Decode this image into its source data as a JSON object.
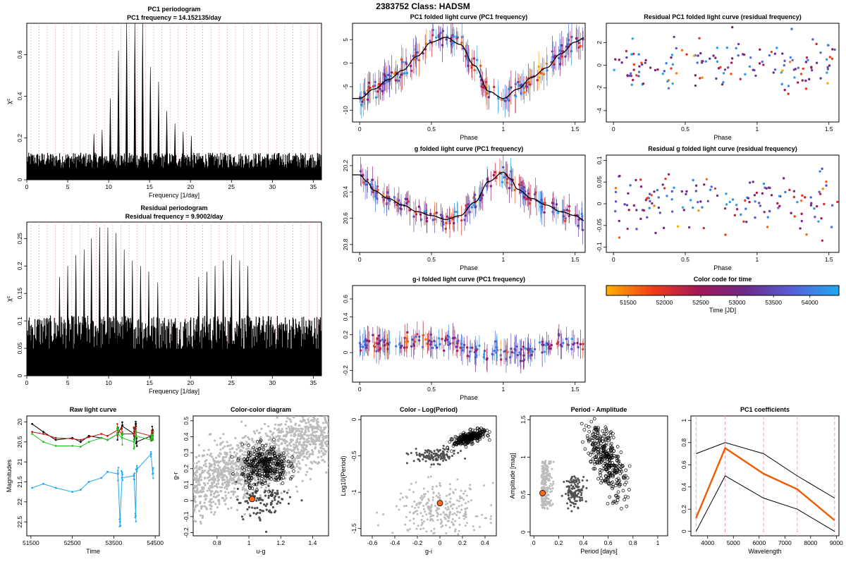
{
  "page": {
    "title": "2383752    Class: HADSM"
  },
  "colors": {
    "time_scale": [
      "#ffb000",
      "#f03c18",
      "#a2165a",
      "#6d2a8a",
      "#5660d8",
      "#1faaf0"
    ],
    "pc1_line": "#f05a00",
    "grey_points": "#bcbcbc",
    "dark_points": "#505050",
    "highlight_point": "#ff6a1a",
    "raw_black": "#000000",
    "raw_red": "#d01010",
    "raw_green": "#20c020",
    "raw_blue": "#20a8f0",
    "frequency_marker_line": "#f0a0b4",
    "wavelength_marker_line": "#f0a0b4"
  },
  "chart_data": [
    {
      "id": "pc1-periodogram",
      "type": "line",
      "title": "PC1 periodogram",
      "subtitle": "PC1 frequency = 14.152135/day",
      "xlabel": "Frequency [1/day]",
      "ylabel": "χ²",
      "xlim": [
        0,
        36
      ],
      "ylim": [
        0,
        0.75
      ],
      "xticks": [
        0,
        5,
        10,
        15,
        20,
        25,
        30,
        35
      ],
      "yticks": [
        0.0,
        0.2,
        0.4,
        0.6
      ],
      "peaks": [
        {
          "x": 8.2,
          "y": 0.22
        },
        {
          "x": 9.2,
          "y": 0.24
        },
        {
          "x": 10.2,
          "y": 0.39
        },
        {
          "x": 11.2,
          "y": 0.62
        },
        {
          "x": 12.2,
          "y": 0.75
        },
        {
          "x": 13.2,
          "y": 0.75
        },
        {
          "x": 14.15,
          "y": 0.75
        },
        {
          "x": 15.1,
          "y": 0.54
        },
        {
          "x": 16.1,
          "y": 0.47
        },
        {
          "x": 17.1,
          "y": 0.33
        },
        {
          "x": 18.1,
          "y": 0.27
        },
        {
          "x": 19.1,
          "y": 0.23
        },
        {
          "x": 20.1,
          "y": 0.21
        }
      ],
      "noise_level": 0.13,
      "frequency_markers": true
    },
    {
      "id": "residual-periodogram",
      "type": "line",
      "title": "Residual periodogram",
      "subtitle": "Residual frequency = 9.9002/day",
      "xlabel": "Frequency [1/day]",
      "ylabel": "χ²",
      "xlim": [
        0,
        36
      ],
      "ylim": [
        0,
        0.28
      ],
      "xticks": [
        0,
        5,
        10,
        15,
        20,
        25,
        30,
        35
      ],
      "yticks": [
        0.0,
        0.05,
        0.1,
        0.15,
        0.2,
        0.25
      ],
      "peaks": [
        {
          "x": 4.0,
          "y": 0.18
        },
        {
          "x": 5.0,
          "y": 0.2
        },
        {
          "x": 6.0,
          "y": 0.22
        },
        {
          "x": 7.0,
          "y": 0.23
        },
        {
          "x": 7.9,
          "y": 0.25
        },
        {
          "x": 8.9,
          "y": 0.27
        },
        {
          "x": 9.9,
          "y": 0.27
        },
        {
          "x": 10.9,
          "y": 0.26
        },
        {
          "x": 11.9,
          "y": 0.23
        },
        {
          "x": 12.9,
          "y": 0.21
        },
        {
          "x": 13.9,
          "y": 0.2
        },
        {
          "x": 14.9,
          "y": 0.19
        },
        {
          "x": 16.0,
          "y": 0.17
        },
        {
          "x": 21.0,
          "y": 0.18
        },
        {
          "x": 22.0,
          "y": 0.19
        },
        {
          "x": 23.0,
          "y": 0.2
        },
        {
          "x": 24.0,
          "y": 0.21
        },
        {
          "x": 25.0,
          "y": 0.22
        },
        {
          "x": 26.0,
          "y": 0.21
        },
        {
          "x": 27.0,
          "y": 0.2
        }
      ],
      "noise_level": 0.11,
      "frequency_markers": true
    },
    {
      "id": "pc1-folded",
      "type": "scatter",
      "title": "PC1 folded light curve (PC1 frequency)",
      "xlabel": "Phase",
      "ylabel": "",
      "xlim": [
        -0.05,
        1.57
      ],
      "ylim": [
        -12.5,
        8.5
      ],
      "xticks": [
        0,
        0.5,
        1.0,
        1.5
      ],
      "yticks": [
        -10,
        -5,
        0,
        5
      ],
      "curve": {
        "x": [
          0,
          0.1,
          0.2,
          0.3,
          0.4,
          0.5,
          0.6,
          0.7,
          0.8,
          0.9,
          1.0,
          1.1,
          1.2,
          1.3,
          1.4,
          1.5,
          1.57
        ],
        "y": [
          -7.5,
          -5.5,
          -3.5,
          -1.5,
          1.5,
          4.5,
          5.5,
          4.0,
          -0.5,
          -6.0,
          -7.5,
          -5.5,
          -3.0,
          -1.0,
          2.0,
          4.5,
          5.5
        ]
      },
      "scatter_amplitude": 2.2,
      "error_bars": true,
      "reversed_y": false
    },
    {
      "id": "residual-pc1-folded",
      "type": "scatter",
      "title": "Residual PC1 folded light curve (residual frequency)",
      "xlabel": "Phase",
      "ylabel": "",
      "xlim": [
        -0.05,
        1.57
      ],
      "ylim": [
        -5,
        3.7
      ],
      "xticks": [
        0,
        0.5,
        1.0,
        1.5
      ],
      "yticks": [
        -4,
        -2,
        0,
        2
      ],
      "curve": null,
      "scatter_amplitude": 1.6,
      "error_bars": false,
      "reversed_y": false
    },
    {
      "id": "g-folded",
      "type": "scatter",
      "title": "g folded light curve (PC1 frequency)",
      "xlabel": "Phase",
      "ylabel": "",
      "xlim": [
        -0.05,
        1.57
      ],
      "ylim": [
        20.12,
        20.86
      ],
      "xticks": [
        0,
        0.5,
        1.0,
        1.5
      ],
      "yticks": [
        20.2,
        20.4,
        20.6,
        20.8
      ],
      "curve": {
        "x": [
          0,
          0.05,
          0.1,
          0.2,
          0.3,
          0.4,
          0.5,
          0.6,
          0.7,
          0.8,
          0.9,
          1.0,
          1.05,
          1.1,
          1.2,
          1.3,
          1.4,
          1.5,
          1.57
        ],
        "y": [
          20.27,
          20.32,
          20.39,
          20.45,
          20.5,
          20.55,
          20.58,
          20.61,
          20.58,
          20.48,
          20.32,
          20.25,
          20.3,
          20.38,
          20.45,
          20.5,
          20.55,
          20.58,
          20.62
        ]
      },
      "scatter_amplitude": 0.07,
      "error_bars": true,
      "reversed_y": true
    },
    {
      "id": "residual-g-folded",
      "type": "scatter",
      "title": "Residual g folded light curve (residual frequency)",
      "xlabel": "Phase",
      "ylabel": "",
      "xlim": [
        -0.05,
        1.57
      ],
      "ylim": [
        -0.112,
        0.112
      ],
      "xticks": [
        0,
        0.5,
        1.0,
        1.5
      ],
      "yticks": [
        -0.1,
        -0.05,
        0.0,
        0.05,
        0.1
      ],
      "curve": null,
      "scatter_amplitude": 0.045,
      "error_bars": false,
      "reversed_y": false
    },
    {
      "id": "gi-folded",
      "type": "scatter",
      "title": "g-i folded light curve (PC1 frequency)",
      "xlabel": "Phase",
      "ylabel": "",
      "xlim": [
        -0.05,
        1.57
      ],
      "ylim": [
        -0.33,
        0.75
      ],
      "xticks": [
        0,
        0.5,
        1.0,
        1.5
      ],
      "yticks": [
        -0.2,
        0.0,
        0.2,
        0.4,
        0.6
      ],
      "curve": {
        "x": [
          0,
          0.5,
          1.0,
          1.57
        ],
        "y": [
          0.08,
          0.12,
          0.0,
          0.1
        ]
      },
      "scatter_amplitude": 0.1,
      "error_bars": true,
      "reversed_y": false,
      "hide_curve": true
    },
    {
      "id": "color-code",
      "type": "heatmap",
      "title": "Color code for time",
      "xlabel": "Time [JD]",
      "xlim": [
        51200,
        54400
      ],
      "xticks": [
        51500,
        52000,
        52500,
        53000,
        53500,
        54000
      ]
    },
    {
      "id": "raw-light-curve",
      "type": "line",
      "title": "Raw light curve",
      "xlabel": "Time",
      "ylabel": "Magnitudes",
      "xlim": [
        51400,
        54600
      ],
      "ylim": [
        19.85,
        22.85
      ],
      "xticks": [
        51500,
        52500,
        53500,
        54500
      ],
      "yticks": [
        20.0,
        20.5,
        21.0,
        21.5,
        22.0,
        22.5
      ],
      "reversed_y": true,
      "series": [
        {
          "name": "black",
          "color_key": "raw_black",
          "x": [
            51530,
            51800,
            52100,
            52500,
            52700,
            52900,
            53200,
            53350,
            53600,
            53700,
            53990,
            54030,
            54050,
            54400,
            54440
          ],
          "y": [
            20.05,
            20.25,
            20.45,
            20.4,
            20.5,
            20.35,
            20.4,
            20.45,
            20.3,
            20.1,
            20.3,
            20.05,
            20.5,
            20.35,
            20.2
          ]
        },
        {
          "name": "red",
          "color_key": "raw_red",
          "x": [
            51530,
            51800,
            52100,
            52500,
            52700,
            52900,
            53200,
            53350,
            53600,
            53700,
            53990,
            54030,
            54400,
            54440
          ],
          "y": [
            20.25,
            20.3,
            20.4,
            20.42,
            20.45,
            20.38,
            20.3,
            20.35,
            20.2,
            20.3,
            20.3,
            20.25,
            20.35,
            20.3
          ]
        },
        {
          "name": "green",
          "color_key": "raw_green",
          "x": [
            51530,
            51800,
            52100,
            52500,
            52700,
            52900,
            53200,
            53350,
            53600,
            53700,
            53990,
            54030,
            54400,
            54440
          ],
          "y": [
            20.3,
            20.5,
            20.6,
            20.6,
            20.62,
            20.5,
            20.4,
            20.45,
            20.3,
            20.4,
            20.5,
            20.35,
            20.45,
            20.4
          ]
        },
        {
          "name": "blue",
          "color_key": "raw_blue",
          "x": [
            51530,
            51800,
            52100,
            52500,
            52700,
            52900,
            53200,
            53350,
            53600,
            53650,
            53700,
            53990,
            54030,
            54050,
            54400,
            54440
          ],
          "y": [
            21.65,
            21.55,
            21.65,
            21.75,
            21.7,
            21.5,
            21.4,
            21.25,
            21.3,
            22.5,
            21.4,
            21.35,
            22.35,
            21.2,
            20.8,
            21.3
          ]
        }
      ]
    },
    {
      "id": "color-color",
      "type": "scatter",
      "title": "Color-color diagram",
      "xlabel": "u-g",
      "ylabel": "g-r",
      "xlim": [
        0.65,
        1.5
      ],
      "ylim": [
        -0.22,
        0.53
      ],
      "xticks": [
        0.8,
        1.0,
        1.2,
        1.4
      ],
      "yticks": [
        -0.2,
        -0.1,
        0.0,
        0.1,
        0.2,
        0.3,
        0.4,
        0.5
      ],
      "highlight": {
        "x": 1.02,
        "y": 0.01
      }
    },
    {
      "id": "color-logperiod",
      "type": "scatter",
      "title": "Color - Log(Period)",
      "xlabel": "g-i",
      "ylabel": "Log10(Period)",
      "xlim": [
        -0.7,
        0.5
      ],
      "ylim": [
        -1.6,
        0.05
      ],
      "xticks": [
        -0.6,
        -0.4,
        -0.2,
        0.0,
        0.2,
        0.4
      ],
      "yticks": [
        -1.5,
        -1.0,
        -0.5,
        0.0
      ],
      "highlight": {
        "x": 0.0,
        "y": -1.15
      }
    },
    {
      "id": "period-amplitude",
      "type": "scatter",
      "title": "Period - Amplitude",
      "xlabel": "Period [days]",
      "ylabel": "Amplitude [mag]",
      "xlim": [
        -0.03,
        1.08
      ],
      "ylim": [
        -0.05,
        1.55
      ],
      "xticks": [
        0.0,
        0.2,
        0.4,
        0.6,
        0.8,
        1.0
      ],
      "yticks": [
        0.0,
        0.5,
        1.0,
        1.5
      ],
      "highlight": {
        "x": 0.07,
        "y": 0.52
      }
    },
    {
      "id": "pc1-coefficients",
      "type": "line",
      "title": "PC1 coefficients",
      "xlabel": "Wavelength",
      "ylabel": "",
      "xlim": [
        3350,
        9100
      ],
      "ylim": [
        -0.04,
        1.04
      ],
      "xticks": [
        4000,
        5000,
        6000,
        7000,
        8000,
        9000
      ],
      "yticks": [
        0.0,
        0.2,
        0.4,
        0.6,
        0.8,
        1.0
      ],
      "wavelength_markers": [
        3550,
        4680,
        6170,
        7480,
        8930
      ],
      "series": [
        {
          "name": "upper",
          "color_key": "raw_black",
          "x": [
            3550,
            4680,
            6170,
            7480,
            8930
          ],
          "y": [
            0.7,
            0.8,
            0.7,
            0.5,
            0.3
          ]
        },
        {
          "name": "PC1",
          "color_key": "pc1_line",
          "x": [
            3550,
            4680,
            6170,
            7480,
            8930
          ],
          "y": [
            0.12,
            0.75,
            0.52,
            0.38,
            0.1
          ]
        },
        {
          "name": "lower",
          "color_key": "raw_black",
          "x": [
            3550,
            4680,
            6170,
            7480,
            8930
          ],
          "y": [
            0.0,
            0.5,
            0.3,
            0.2,
            0.0
          ]
        }
      ]
    }
  ]
}
